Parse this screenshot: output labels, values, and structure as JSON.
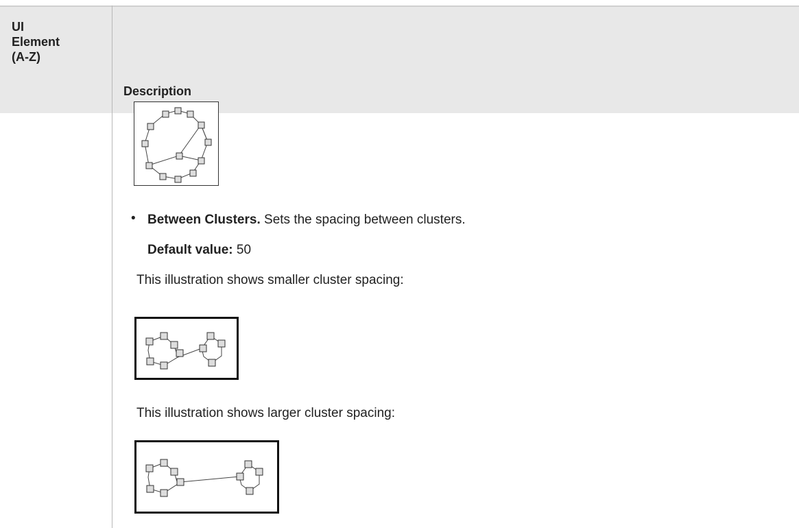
{
  "table": {
    "header": [
      "UI Element (A-Z)",
      "Description"
    ],
    "body": {
      "bullet": {
        "term": "Between Clusters.",
        "text": "Sets the spacing between clusters."
      },
      "default": {
        "label": "Default value:",
        "value": "50"
      },
      "caption_smaller": "This illustration shows smaller cluster spacing:",
      "caption_larger": "This illustration shows larger cluster spacing:"
    }
  }
}
